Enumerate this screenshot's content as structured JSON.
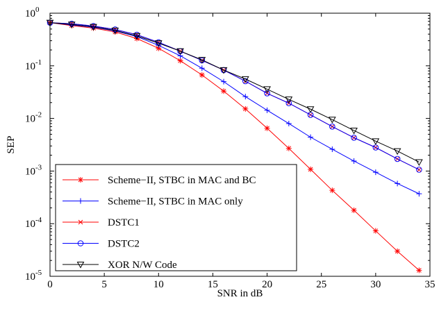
{
  "chart_data": {
    "type": "line",
    "title": "",
    "xlabel": "SNR in dB",
    "ylabel": "SEP",
    "xlim": [
      0,
      35
    ],
    "ylim": [
      1e-05,
      1
    ],
    "yscale": "log",
    "x_ticks": [
      0,
      5,
      10,
      15,
      20,
      25,
      30,
      35
    ],
    "y_ticks": [
      {
        "value": 1,
        "base": "10",
        "exp": "0"
      },
      {
        "value": 0.1,
        "base": "10",
        "exp": "-1"
      },
      {
        "value": 0.01,
        "base": "10",
        "exp": "-2"
      },
      {
        "value": 0.001,
        "base": "10",
        "exp": "-3"
      },
      {
        "value": 0.0001,
        "base": "10",
        "exp": "-4"
      },
      {
        "value": 1e-05,
        "base": "10",
        "exp": "-5"
      }
    ],
    "grid": false,
    "legend_position": "lower-left",
    "x": [
      0,
      2,
      4,
      6,
      8,
      10,
      12,
      14,
      16,
      18,
      20,
      22,
      24,
      26,
      28,
      30,
      32,
      34
    ],
    "series": [
      {
        "name": "Scheme−II, STBC in MAC and BC",
        "color": "#ff0000",
        "marker": "star",
        "values": [
          0.66,
          0.58,
          0.52,
          0.44,
          0.33,
          0.215,
          0.125,
          0.067,
          0.033,
          0.0152,
          0.0065,
          0.0027,
          0.00108,
          0.00043,
          0.00018,
          7.3e-05,
          3e-05,
          1.3e-05
        ]
      },
      {
        "name": "Scheme−II, STBC in MAC only",
        "color": "#0000ff",
        "marker": "plus",
        "values": [
          0.66,
          0.6,
          0.54,
          0.46,
          0.36,
          0.245,
          0.155,
          0.09,
          0.05,
          0.026,
          0.0143,
          0.008,
          0.0044,
          0.0026,
          0.00155,
          0.00095,
          0.00058,
          0.00037
        ]
      },
      {
        "name": "DSTC1",
        "color": "#ff0000",
        "marker": "x",
        "values": [
          0.66,
          0.63,
          0.57,
          0.49,
          0.39,
          0.28,
          0.19,
          0.127,
          0.083,
          0.051,
          0.03,
          0.0195,
          0.0117,
          0.007,
          0.0043,
          0.0028,
          0.0017,
          0.00106
        ]
      },
      {
        "name": "DSTC2",
        "color": "#0000ff",
        "marker": "circle",
        "values": [
          0.66,
          0.63,
          0.57,
          0.49,
          0.39,
          0.28,
          0.19,
          0.127,
          0.083,
          0.051,
          0.03,
          0.0195,
          0.0117,
          0.007,
          0.0043,
          0.0028,
          0.0017,
          0.00106
        ]
      },
      {
        "name": "XOR N/W Code",
        "color": "#000000",
        "marker": "triangle-down",
        "values": [
          0.66,
          0.61,
          0.55,
          0.47,
          0.37,
          0.27,
          0.19,
          0.13,
          0.083,
          0.056,
          0.036,
          0.023,
          0.015,
          0.0095,
          0.0059,
          0.0037,
          0.0024,
          0.00148
        ]
      }
    ]
  }
}
